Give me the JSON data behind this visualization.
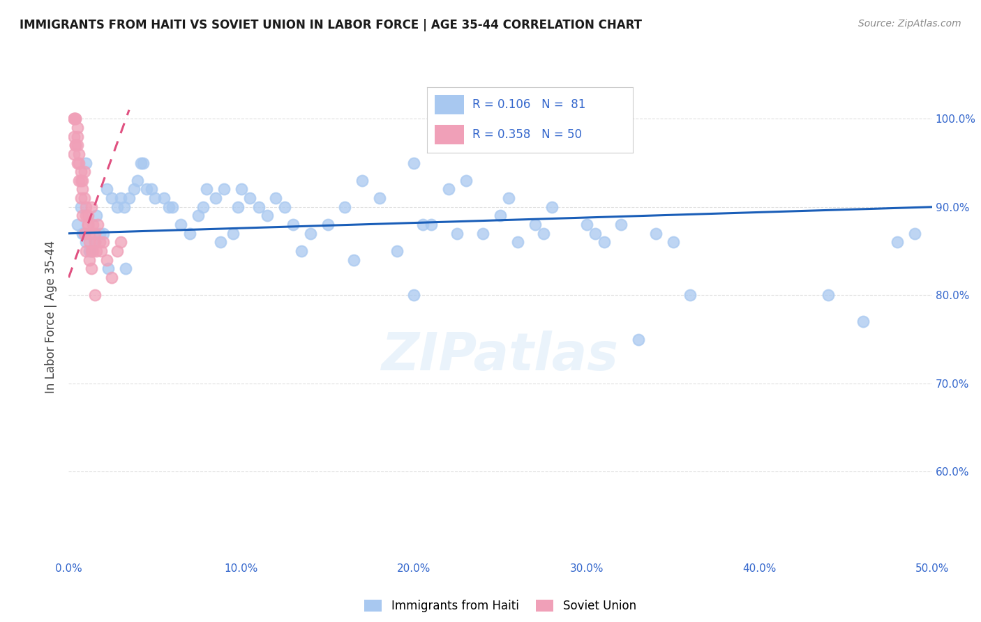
{
  "title": "IMMIGRANTS FROM HAITI VS SOVIET UNION IN LABOR FORCE | AGE 35-44 CORRELATION CHART",
  "source": "Source: ZipAtlas.com",
  "xlabel": "",
  "ylabel": "In Labor Force | Age 35-44",
  "xlim": [
    0.0,
    50.0
  ],
  "ylim": [
    50.0,
    105.0
  ],
  "x_ticks": [
    0.0,
    10.0,
    20.0,
    30.0,
    40.0,
    50.0
  ],
  "y_ticks": [
    60.0,
    70.0,
    80.0,
    90.0,
    100.0
  ],
  "legend_r_haiti": "R = 0.106",
  "legend_n_haiti": "N =  81",
  "legend_r_soviet": "R = 0.358",
  "legend_n_soviet": "N = 50",
  "haiti_color": "#a8c8f0",
  "soviet_color": "#f0a0b8",
  "trendline_haiti_color": "#1a5eb8",
  "trendline_soviet_color": "#e05080",
  "haiti_x": [
    0.5,
    0.8,
    1.0,
    1.2,
    1.5,
    1.8,
    2.0,
    2.2,
    2.5,
    2.8,
    3.0,
    3.2,
    3.5,
    3.8,
    4.0,
    4.2,
    4.5,
    4.8,
    5.0,
    5.5,
    6.0,
    6.5,
    7.0,
    7.5,
    8.0,
    8.5,
    9.0,
    9.5,
    10.0,
    10.5,
    11.0,
    11.5,
    12.0,
    12.5,
    13.0,
    14.0,
    15.0,
    16.0,
    17.0,
    18.0,
    19.0,
    20.0,
    21.0,
    22.0,
    24.0,
    25.0,
    26.0,
    27.0,
    28.0,
    30.0,
    31.0,
    32.0,
    34.0,
    35.0,
    20.5,
    22.5,
    25.5,
    27.5,
    8.8,
    7.8,
    1.0,
    1.3,
    0.7,
    0.9,
    1.6,
    2.3,
    3.3,
    4.3,
    5.8,
    9.8,
    13.5,
    16.5,
    20.0,
    23.0,
    30.5,
    33.0,
    36.0,
    44.0,
    46.0,
    48.0,
    49.0
  ],
  "haiti_y": [
    88,
    87,
    86,
    85,
    86,
    87,
    87,
    92,
    91,
    90,
    91,
    90,
    91,
    92,
    93,
    95,
    92,
    92,
    91,
    91,
    90,
    88,
    87,
    89,
    92,
    91,
    92,
    87,
    92,
    91,
    90,
    89,
    91,
    90,
    88,
    87,
    88,
    90,
    93,
    91,
    85,
    95,
    88,
    92,
    87,
    89,
    86,
    88,
    90,
    88,
    86,
    88,
    87,
    86,
    88,
    87,
    91,
    87,
    86,
    90,
    95,
    85,
    90,
    87,
    89,
    83,
    83,
    95,
    90,
    90,
    85,
    84,
    80,
    93,
    87,
    75,
    80,
    80,
    77,
    86,
    87
  ],
  "soviet_x": [
    0.3,
    0.3,
    0.3,
    0.4,
    0.4,
    0.4,
    0.5,
    0.5,
    0.5,
    0.6,
    0.6,
    0.7,
    0.7,
    0.8,
    0.8,
    0.9,
    0.9,
    1.0,
    1.0,
    1.1,
    1.1,
    1.2,
    1.2,
    1.3,
    1.3,
    1.4,
    1.5,
    1.5,
    1.6,
    1.7,
    1.8,
    1.9,
    2.0,
    2.2,
    2.5,
    2.8,
    3.0,
    0.4,
    0.5,
    0.6,
    0.7,
    0.8,
    0.9,
    1.0,
    1.1,
    1.2,
    1.3,
    1.4,
    1.5,
    0.3
  ],
  "soviet_y": [
    100,
    100,
    98,
    100,
    100,
    97,
    99,
    98,
    97,
    96,
    95,
    94,
    93,
    92,
    93,
    94,
    91,
    90,
    89,
    88,
    89,
    87,
    86,
    85,
    90,
    88,
    87,
    86,
    85,
    88,
    86,
    85,
    86,
    84,
    82,
    85,
    86,
    97,
    95,
    93,
    91,
    89,
    87,
    85,
    88,
    84,
    83,
    85,
    80,
    96
  ],
  "background_color": "#ffffff",
  "grid_color": "#e0e0e0",
  "haiti_trend_x0": 0.0,
  "haiti_trend_y0": 87.0,
  "haiti_trend_x1": 50.0,
  "haiti_trend_y1": 90.0,
  "soviet_trend_x0": 0.0,
  "soviet_trend_y0": 82.0,
  "soviet_trend_x1": 3.5,
  "soviet_trend_y1": 101.0
}
